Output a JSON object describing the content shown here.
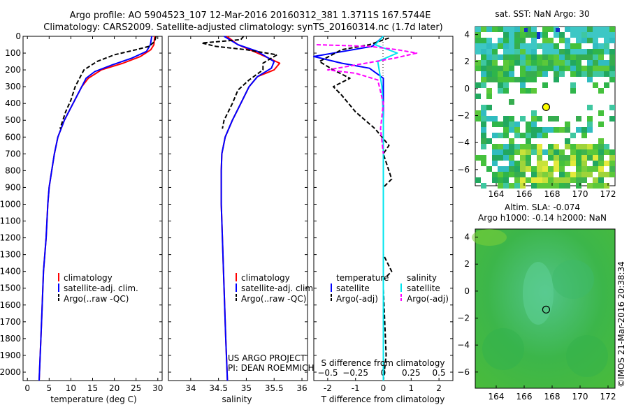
{
  "header": {
    "title_line1": "Argo profile: AO 5904523_107 12-Mar-2016 20160312_381 1.3711S 167.5744E",
    "title_line2": "Climatology: CARS2009. Satellite-adjusted climatology: synTS_20160314.nc (1.7d later)"
  },
  "colors": {
    "climatology": "#ff0000",
    "satellite": "#0000ff",
    "argo": "#000000",
    "salinity_satellite": "#00e5ee",
    "salinity_argo": "#ff00ff"
  },
  "chart_data": [
    {
      "id": "temperature",
      "type": "line",
      "xlabel": "temperature (deg C)",
      "xlim": [
        -1,
        31
      ],
      "ylim": [
        0,
        2050
      ],
      "y_reversed": true,
      "xticks": [
        0,
        5,
        10,
        15,
        20,
        25,
        30
      ],
      "yticks": [
        0,
        100,
        200,
        300,
        400,
        500,
        600,
        700,
        800,
        900,
        1000,
        1100,
        1200,
        1300,
        1400,
        1500,
        1600,
        1700,
        1800,
        1900,
        2000
      ],
      "legend": [
        "climatology",
        "satellite-adj. clim.",
        "Argo(..raw -QC)"
      ],
      "series": [
        {
          "name": "climatology",
          "style": "solid",
          "points": [
            [
              29.3,
              0
            ],
            [
              29.1,
              50
            ],
            [
              28.4,
              80
            ],
            [
              26,
              120
            ],
            [
              22,
              160
            ],
            [
              17,
              200
            ],
            [
              14,
              250
            ],
            [
              12.5,
              300
            ],
            [
              10.5,
              400
            ],
            [
              8.5,
              500
            ],
            [
              7,
              600
            ],
            [
              6.2,
              700
            ],
            [
              5.6,
              800
            ],
            [
              5,
              900
            ],
            [
              4.7,
              1000
            ],
            [
              4.3,
              1200
            ],
            [
              3.7,
              1400
            ],
            [
              3.4,
              1600
            ],
            [
              3.1,
              1800
            ],
            [
              2.7,
              2050
            ]
          ]
        },
        {
          "name": "satellite-adj. clim.",
          "style": "solid",
          "points": [
            [
              28.6,
              0
            ],
            [
              28.3,
              50
            ],
            [
              27.4,
              90
            ],
            [
              24,
              130
            ],
            [
              19.5,
              170
            ],
            [
              15.5,
              210
            ],
            [
              13.5,
              250
            ],
            [
              12.5,
              300
            ],
            [
              10.5,
              400
            ],
            [
              8.5,
              500
            ],
            [
              7,
              600
            ],
            [
              6.2,
              700
            ],
            [
              5.6,
              800
            ],
            [
              5,
              900
            ],
            [
              4.7,
              1000
            ],
            [
              4.3,
              1200
            ],
            [
              3.7,
              1400
            ],
            [
              3.4,
              1600
            ],
            [
              3.1,
              1800
            ],
            [
              2.7,
              2050
            ]
          ]
        },
        {
          "name": "Argo(..raw -QC)",
          "style": "dashed",
          "points": [
            [
              29.6,
              0
            ],
            [
              29.4,
              20
            ],
            [
              28.9,
              40
            ],
            [
              28,
              60
            ],
            [
              25,
              80
            ],
            [
              20,
              110
            ],
            [
              16,
              150
            ],
            [
              13,
              200
            ],
            [
              12,
              250
            ],
            [
              11,
              300
            ],
            [
              10,
              380
            ],
            [
              8.8,
              450
            ],
            [
              7.5,
              550
            ]
          ]
        }
      ]
    },
    {
      "id": "salinity",
      "type": "line",
      "xlabel": "salinity",
      "xlim": [
        33.6,
        36.1
      ],
      "ylim": [
        0,
        2050
      ],
      "y_reversed": true,
      "xticks": [
        34,
        34.5,
        35,
        35.5,
        36
      ],
      "xticklabels": [
        "34",
        "34.5",
        "35",
        "35.5",
        "36"
      ],
      "legend": [
        "climatology",
        "satellite-adj. clim.",
        "Argo(..raw -QC)"
      ],
      "annotation_line1": "US ARGO PROJECT",
      "annotation_line2": "PI: DEAN ROEMMICH",
      "series": [
        {
          "name": "climatology",
          "style": "solid",
          "points": [
            [
              34.65,
              0
            ],
            [
              34.85,
              50
            ],
            [
              35.2,
              100
            ],
            [
              35.6,
              160
            ],
            [
              35.5,
              200
            ],
            [
              35.2,
              240
            ],
            [
              35.05,
              300
            ],
            [
              34.9,
              400
            ],
            [
              34.75,
              500
            ],
            [
              34.62,
              600
            ],
            [
              34.56,
              700
            ],
            [
              34.55,
              800
            ],
            [
              34.55,
              1000
            ],
            [
              34.57,
              1200
            ],
            [
              34.6,
              1500
            ],
            [
              34.63,
              1800
            ],
            [
              34.66,
              2050
            ]
          ]
        },
        {
          "name": "satellite-adj. clim.",
          "style": "solid",
          "points": [
            [
              34.6,
              0
            ],
            [
              34.85,
              50
            ],
            [
              35.2,
              90
            ],
            [
              35.5,
              150
            ],
            [
              35.45,
              190
            ],
            [
              35.2,
              240
            ],
            [
              35.05,
              300
            ],
            [
              34.9,
              400
            ],
            [
              34.75,
              500
            ],
            [
              34.62,
              600
            ],
            [
              34.56,
              700
            ],
            [
              34.55,
              800
            ],
            [
              34.55,
              1000
            ],
            [
              34.57,
              1200
            ],
            [
              34.6,
              1500
            ],
            [
              34.63,
              1800
            ],
            [
              34.66,
              2050
            ]
          ]
        },
        {
          "name": "Argo(..raw -QC)",
          "style": "dashed",
          "points": [
            [
              34.95,
              0
            ],
            [
              34.9,
              20
            ],
            [
              34.2,
              40
            ],
            [
              34.45,
              60
            ],
            [
              35,
              80
            ],
            [
              35.55,
              110
            ],
            [
              35.3,
              160
            ],
            [
              35.3,
              200
            ],
            [
              35.05,
              260
            ],
            [
              34.85,
              320
            ],
            [
              34.75,
              400
            ],
            [
              34.6,
              500
            ],
            [
              34.57,
              550
            ]
          ]
        }
      ]
    },
    {
      "id": "difference",
      "type": "line",
      "xlabel": "T difference from climatology",
      "xlabel_top": "S difference from climatology",
      "xlim": [
        -2.5,
        2.5
      ],
      "ylim": [
        0,
        2050
      ],
      "y_reversed": true,
      "xticks": [
        -2,
        -1,
        0,
        1,
        2
      ],
      "top_ticks": [
        -0.5,
        -0.25,
        0,
        0.25,
        0.5
      ],
      "top_ticklabels": [
        "−0.5",
        "−0.25",
        "0",
        "0.25",
        "0.5"
      ],
      "legend_temperature_title": "temperature",
      "legend_salinity_title": "salinity",
      "legend_temperature": [
        "satellite",
        "Argo(-adj)"
      ],
      "legend_salinity": [
        "satellite",
        "Argo(-adj)"
      ],
      "series": [
        {
          "name": "temperature satellite",
          "style": "solid",
          "points": [
            [
              0,
              0
            ],
            [
              -0.4,
              60
            ],
            [
              -2.5,
              120
            ],
            [
              -1.5,
              160
            ],
            [
              -0.5,
              190
            ],
            [
              0,
              250
            ],
            [
              0,
              2050
            ]
          ]
        },
        {
          "name": "temperature Argo(-adj)",
          "style": "dashed",
          "points": [
            [
              0.2,
              10
            ],
            [
              -0.5,
              50
            ],
            [
              -1.5,
              80
            ],
            [
              -2.3,
              150
            ],
            [
              -1.8,
              200
            ],
            [
              -1.2,
              250
            ],
            [
              -1.8,
              300
            ],
            [
              -1.5,
              350
            ],
            [
              -1,
              450
            ],
            [
              -0.3,
              550
            ],
            [
              0.2,
              650
            ],
            [
              0,
              700
            ],
            [
              0.3,
              850
            ],
            [
              0,
              900
            ],
            [
              0,
              1300
            ],
            [
              0.3,
              1400
            ],
            [
              0,
              1450
            ],
            [
              0,
              1500
            ],
            [
              0.1,
              1900
            ],
            [
              0,
              2050
            ]
          ]
        },
        {
          "name": "salinity satellite",
          "style": "solid",
          "points": [
            [
              0,
              0
            ],
            [
              -0.3,
              50
            ],
            [
              0.5,
              100
            ],
            [
              -0.2,
              150
            ],
            [
              -0.15,
              200
            ],
            [
              -0.05,
              300
            ],
            [
              0,
              500
            ],
            [
              0,
              2050
            ]
          ]
        },
        {
          "name": "salinity Argo(-adj)",
          "style": "dashed",
          "points": [
            [
              -2.4,
              50
            ],
            [
              -0.5,
              60
            ],
            [
              0.5,
              80
            ],
            [
              1.2,
              100
            ],
            [
              0.4,
              130
            ],
            [
              -2.0,
              200
            ],
            [
              -1.0,
              220
            ],
            [
              -0.2,
              260
            ],
            [
              0,
              400
            ],
            [
              -0.1,
              550
            ],
            [
              0,
              700
            ]
          ]
        }
      ]
    }
  ],
  "sst_map": {
    "title": "sat. SST: NaN Argo: 30",
    "xticks": [
      "164",
      "166",
      "168",
      "170",
      "172"
    ],
    "yticks": [
      "4",
      "2",
      "0",
      "−2",
      "−4",
      "−6"
    ],
    "xlim": [
      162.5,
      172.5
    ],
    "ylim": [
      -7.2,
      4.6
    ],
    "argo_lon": 167.57,
    "argo_lat": -1.37
  },
  "sla_map": {
    "title_line1": "Altim. SLA: -0.074",
    "title_line2": "Argo h1000: -0.14 h2000: NaN",
    "xticks": [
      "164",
      "166",
      "168",
      "170",
      "172"
    ],
    "yticks": [
      "4",
      "2",
      "0",
      "−2",
      "−4",
      "−6"
    ],
    "xlim": [
      162.5,
      172.5
    ],
    "ylim": [
      -7.2,
      4.6
    ],
    "argo_lon": 167.57,
    "argo_lat": -1.37
  },
  "credit": "©IMOS 21-Mar-2016 20:38:34"
}
